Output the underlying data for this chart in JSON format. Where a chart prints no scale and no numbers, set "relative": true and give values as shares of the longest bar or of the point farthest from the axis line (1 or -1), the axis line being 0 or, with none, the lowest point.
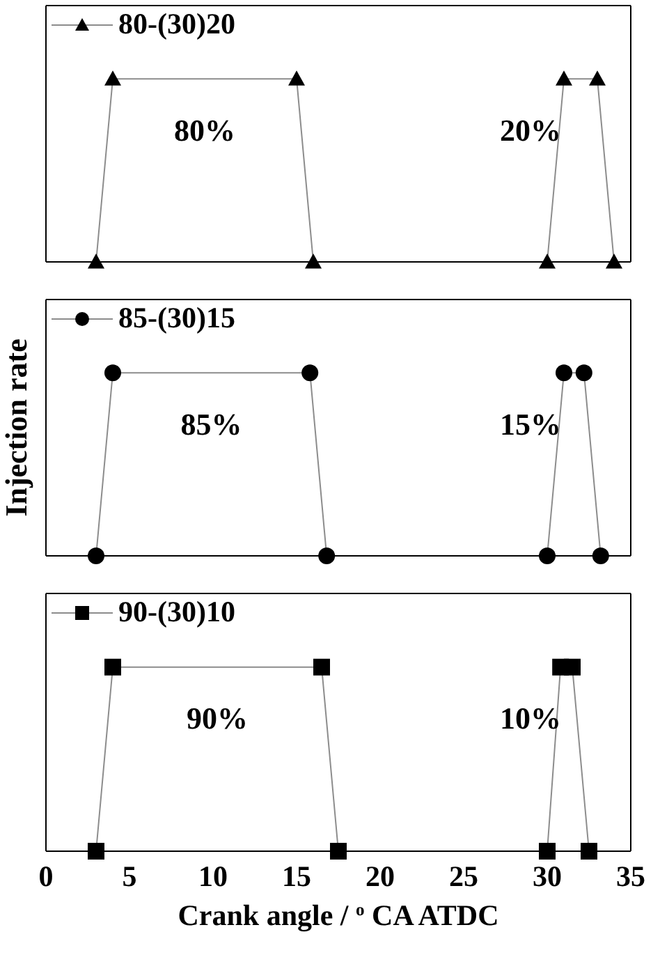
{
  "chart_data": [
    {
      "type": "line",
      "relative": true,
      "x": [
        3,
        4,
        15,
        16,
        30,
        31,
        33,
        34
      ],
      "series": [
        {
          "name": "80-(30)20",
          "color": "#000000",
          "values": [
            0,
            1,
            1,
            0,
            0,
            1,
            1,
            0
          ]
        }
      ],
      "marker": "triangle",
      "legend": "top left",
      "xlim": [
        0,
        35
      ],
      "xticks": [
        0,
        5,
        10,
        15,
        20,
        25,
        30,
        35
      ],
      "tick_labels": false,
      "annotations": [
        "80%",
        "20%"
      ]
    },
    {
      "type": "line",
      "relative": true,
      "x": [
        3,
        4,
        15.8,
        16.8,
        30,
        31,
        32.2,
        33.2
      ],
      "series": [
        {
          "name": "85-(30)15",
          "color": "#000000",
          "values": [
            0,
            1,
            1,
            0,
            0,
            1,
            1,
            0
          ]
        }
      ],
      "marker": "circle",
      "legend": "top left",
      "xlim": [
        0,
        35
      ],
      "xticks": [
        0,
        5,
        10,
        15,
        20,
        25,
        30,
        35
      ],
      "tick_labels": false,
      "ylabel": "Injection rate",
      "annotations": [
        "85%",
        "15%"
      ]
    },
    {
      "type": "line",
      "relative": true,
      "x": [
        3,
        4,
        16.5,
        17.5,
        30,
        30.8,
        31.5,
        32.5
      ],
      "series": [
        {
          "name": "90-(30)10",
          "color": "#000000",
          "values": [
            0,
            1,
            1,
            0,
            0,
            1,
            1,
            0
          ]
        }
      ],
      "marker": "square",
      "legend": "top left",
      "xlim": [
        0,
        35
      ],
      "xticks": [
        0,
        5,
        10,
        15,
        20,
        25,
        30,
        35
      ],
      "tick_labels": "x",
      "xlabel": "Crank angle / $^{o}$ CA ATDC",
      "annotations": [
        "90%",
        "10%"
      ]
    }
  ]
}
